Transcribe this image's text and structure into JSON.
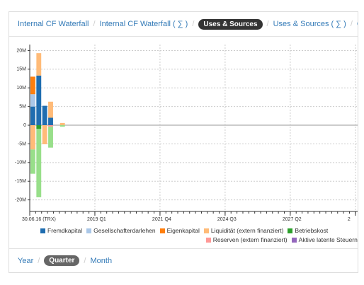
{
  "separator": "/",
  "tabs": {
    "items": [
      "Internal CF Waterfall",
      "Internal CF Waterfall ( ∑ )",
      "Uses & Sources",
      "Uses & Sources ( ∑ )",
      "Cl"
    ],
    "active": 2
  },
  "chart_data": {
    "type": "bar",
    "stacked": true,
    "x": [
      0,
      1,
      2,
      3,
      5
    ],
    "xlim": [
      0,
      55.5
    ],
    "xticks": [
      {
        "value": 0,
        "label": "30.06.16 (TRX)"
      },
      {
        "value": 11,
        "label": "2019 Q1"
      },
      {
        "value": 22,
        "label": "2021 Q4"
      },
      {
        "value": 33,
        "label": "2024 Q3"
      },
      {
        "value": 44,
        "label": "2027 Q2"
      },
      {
        "value": 55,
        "label": "2"
      }
    ],
    "ylim": [
      -23100000,
      21600000
    ],
    "yticks": [
      {
        "value": 20000000,
        "label": "20M"
      },
      {
        "value": 15000000,
        "label": "15M"
      },
      {
        "value": 10000000,
        "label": "10M"
      },
      {
        "value": 5000000,
        "label": "5M"
      },
      0,
      {
        "value": -5000000,
        "label": "-5M"
      },
      {
        "value": -10000000,
        "label": "-10M"
      },
      {
        "value": -15000000,
        "label": "-15M"
      },
      {
        "value": -20000000,
        "label": "-20M"
      }
    ],
    "grid": true,
    "series": [
      {
        "name": "Fremdkapital",
        "color": "#1f6db0",
        "values": [
          5000000,
          13300000,
          5200000,
          2000000,
          null
        ]
      },
      {
        "name": "Gesellschafterdarlehen",
        "color": "#aac7e8",
        "values": [
          3300000,
          null,
          null,
          null,
          null
        ]
      },
      {
        "name": "Eigenkapital",
        "color": "#ff7f0e",
        "values": [
          4700000,
          null,
          null,
          null,
          null
        ]
      },
      {
        "name": "Liquidität (extern finanziert)",
        "color": "#ffbb78",
        "values": [
          -6500000,
          6000000,
          -5100000,
          4300000,
          600000
        ]
      },
      {
        "name": "Betriebskost",
        "color": "#2ca02c",
        "values": [
          null,
          -1000000,
          null,
          null,
          null
        ]
      },
      {
        "name": "Reserven (extern finanziert)",
        "color": "#ff9896",
        "values": [
          null,
          null,
          null,
          -400000,
          null
        ]
      },
      {
        "name": "Aktive latente Steuern (ex",
        "color": "#9467bd",
        "values": [
          null,
          null,
          null,
          null,
          null
        ]
      },
      {
        "name": null,
        "color": "#98df8a",
        "values": [
          -6500000,
          -18300000,
          null,
          -5600000,
          -400000
        ]
      }
    ]
  },
  "periods": {
    "items": [
      "Year",
      "Quarter",
      "Month"
    ],
    "active": 1
  }
}
